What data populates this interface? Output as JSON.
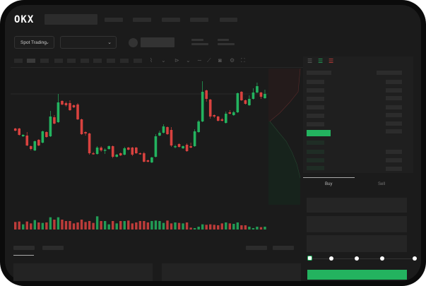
{
  "header": {
    "logo": "OKX"
  },
  "market_bar": {
    "mode_dropdown": "Spot Trading",
    "chevron": "⌄"
  },
  "trade_panel": {
    "tabs": [
      {
        "label": "Buy",
        "active": true
      },
      {
        "label": "Sell",
        "active": false
      }
    ],
    "leverage_slider": {
      "value_percent": 0,
      "stops": 5
    }
  },
  "colors": {
    "up": "#23b35f",
    "down": "#d9423f",
    "background": "#1b1b1b",
    "panel": "#232323"
  },
  "icons": [
    "indicator-icon",
    "draw-icon",
    "line-icon",
    "ruler-icon",
    "camera-icon",
    "settings-icon",
    "fullscreen-icon",
    "orderbook-both-icon",
    "orderbook-bids-icon",
    "orderbook-asks-icon"
  ],
  "chart_data": {
    "type": "candlestick",
    "candles_ohlc": [
      [
        68,
        69,
        64,
        65
      ],
      [
        68,
        69,
        58,
        59
      ],
      [
        57,
        60,
        56,
        59
      ],
      [
        58,
        63,
        43,
        44
      ],
      [
        43,
        44,
        37,
        39
      ],
      [
        37,
        51,
        36,
        50
      ],
      [
        52,
        53,
        43,
        44
      ],
      [
        48,
        65,
        47,
        64
      ],
      [
        63,
        64,
        55,
        56
      ],
      [
        57,
        93,
        56,
        85
      ],
      [
        84,
        87,
        74,
        75
      ],
      [
        77,
        117,
        76,
        105
      ],
      [
        107,
        108,
        101,
        102
      ],
      [
        104,
        106,
        99,
        101
      ],
      [
        104,
        108,
        93,
        94
      ],
      [
        101,
        102,
        97,
        98
      ],
      [
        102,
        104,
        80,
        81
      ],
      [
        81,
        82,
        59,
        60
      ],
      [
        63,
        64,
        58,
        61
      ],
      [
        61,
        62,
        31,
        33
      ],
      [
        33,
        35,
        31,
        32
      ],
      [
        32,
        43,
        31,
        41
      ],
      [
        41,
        43,
        35,
        37
      ],
      [
        37,
        40,
        32,
        38
      ],
      [
        39,
        44,
        38,
        43
      ],
      [
        43,
        44,
        26,
        28
      ],
      [
        28,
        32,
        27,
        31
      ],
      [
        33,
        34,
        29,
        30
      ],
      [
        31,
        42,
        30,
        40
      ],
      [
        41,
        42,
        37,
        38
      ],
      [
        41,
        42,
        29,
        31
      ],
      [
        41,
        42,
        32,
        33
      ],
      [
        33,
        34,
        31,
        32
      ],
      [
        33,
        35,
        20,
        21
      ],
      [
        23,
        24,
        20,
        21
      ],
      [
        20,
        28,
        19,
        27
      ],
      [
        28,
        60,
        27,
        57
      ],
      [
        58,
        65,
        57,
        62
      ],
      [
        62,
        74,
        61,
        71
      ],
      [
        70,
        71,
        59,
        60
      ],
      [
        66,
        70,
        42,
        44
      ],
      [
        42,
        45,
        40,
        43
      ],
      [
        46,
        47,
        41,
        42
      ],
      [
        40,
        44,
        39,
        43
      ],
      [
        45,
        47,
        35,
        36
      ],
      [
        43,
        48,
        40,
        41
      ],
      [
        43,
        67,
        42,
        64
      ],
      [
        63,
        80,
        62,
        78
      ],
      [
        78,
        135,
        77,
        120
      ],
      [
        122,
        123,
        106,
        110
      ],
      [
        109,
        110,
        82,
        85
      ],
      [
        87,
        88,
        83,
        85
      ],
      [
        85,
        86,
        78,
        79
      ],
      [
        81,
        83,
        78,
        79
      ],
      [
        76,
        92,
        75,
        89
      ],
      [
        91,
        94,
        88,
        89
      ],
      [
        87,
        93,
        86,
        91
      ],
      [
        91,
        119,
        90,
        118
      ],
      [
        120,
        121,
        107,
        108
      ],
      [
        108,
        109,
        102,
        103
      ],
      [
        101,
        115,
        100,
        110
      ],
      [
        110,
        125,
        109,
        119
      ],
      [
        119,
        133,
        118,
        128
      ],
      [
        119,
        120,
        110,
        113
      ],
      [
        111,
        123,
        110,
        117
      ]
    ],
    "volume": [
      32,
      34,
      22,
      34,
      26,
      40,
      30,
      28,
      30,
      52,
      42,
      52,
      42,
      36,
      36,
      26,
      30,
      42,
      32,
      36,
      28,
      56,
      36,
      36,
      22,
      36,
      26,
      36,
      36,
      38,
      26,
      30,
      36,
      36,
      30,
      36,
      38,
      36,
      28,
      38,
      26,
      30,
      28,
      26,
      30,
      8,
      6,
      12,
      22,
      20,
      22,
      20,
      18,
      26,
      30,
      26,
      24,
      30,
      18,
      18,
      12,
      6,
      12,
      10,
      12
    ]
  }
}
